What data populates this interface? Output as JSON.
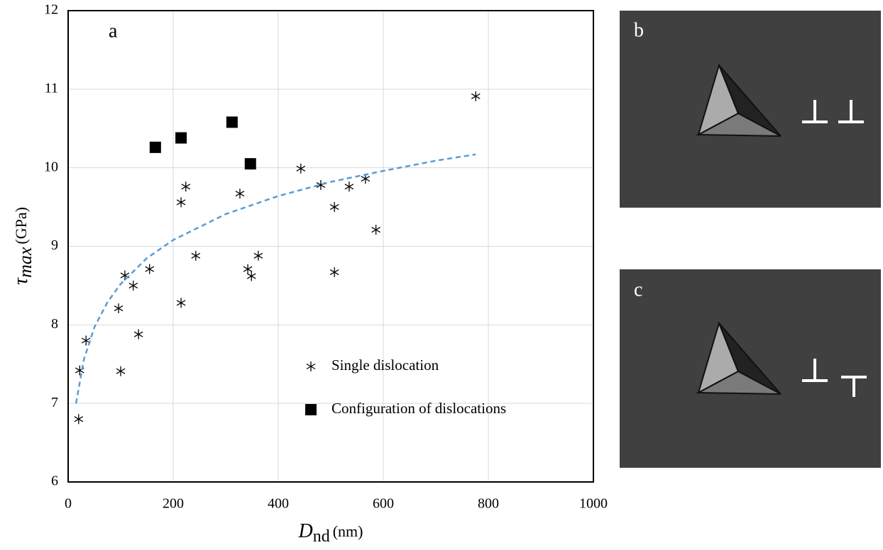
{
  "chart_data": {
    "type": "scatter",
    "annotation": "a",
    "xlabel": {
      "symbol": "D",
      "subscript": "nd",
      "unit": "(nm)"
    },
    "ylabel": {
      "symbol": "τ",
      "subscript": "max",
      "unit": "(GPa)"
    },
    "xlim": [
      0,
      1000
    ],
    "xticks": [
      0,
      200,
      400,
      600,
      800,
      1000
    ],
    "ylim": [
      6,
      12
    ],
    "yticks": [
      6,
      7,
      8,
      9,
      10,
      11,
      12
    ],
    "grid": true,
    "legend": "lower right",
    "series": [
      {
        "name": "Single dislocation",
        "marker": "asterisk",
        "color": "#000000",
        "x": [
          20,
          22,
          34,
          96,
          100,
          108,
          124,
          134,
          155,
          215,
          215,
          224,
          243,
          327,
          342,
          349,
          362,
          443,
          481,
          507,
          507,
          535,
          566,
          586,
          776
        ],
        "values": [
          6.8,
          7.42,
          7.8,
          8.21,
          7.41,
          8.63,
          8.5,
          7.88,
          8.71,
          9.56,
          8.28,
          9.76,
          8.88,
          9.67,
          8.71,
          8.62,
          8.88,
          9.99,
          9.78,
          9.5,
          8.67,
          9.76,
          9.86,
          9.21,
          10.91
        ]
      },
      {
        "name": "Configuration of dislocations",
        "marker": "square",
        "color": "#000000",
        "x": [
          166,
          215,
          312,
          347
        ],
        "values": [
          10.26,
          10.38,
          10.58,
          10.05
        ]
      },
      {
        "marker": "dashed-line",
        "color": "#5b9bd5",
        "x": [
          15,
          30,
          50,
          75,
          100,
          150,
          200,
          300,
          400,
          500,
          600,
          700,
          776
        ],
        "values": [
          7.0,
          7.56,
          7.97,
          8.29,
          8.52,
          8.85,
          9.08,
          9.41,
          9.64,
          9.82,
          9.96,
          10.09,
          10.17
        ]
      }
    ]
  },
  "panels": [
    {
      "label": "b"
    },
    {
      "label": "c"
    }
  ]
}
